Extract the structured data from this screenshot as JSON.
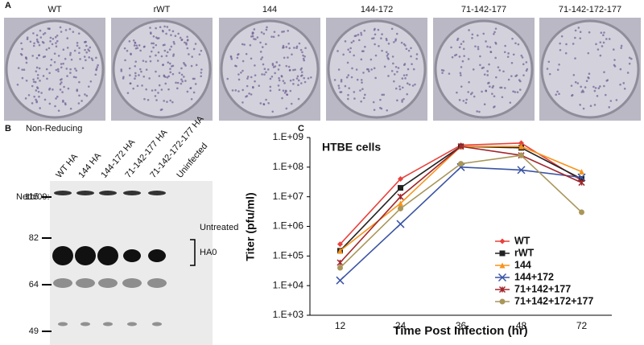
{
  "panel_a": {
    "label": "A",
    "plates": [
      "WT",
      "rWT",
      "144",
      "144-172",
      "71-142-177",
      "71-142-172-177"
    ]
  },
  "panel_b": {
    "label": "B",
    "condition": "Non-Reducing",
    "strain": "Neth/09:",
    "lanes": [
      "WT HA",
      "144 HA",
      "144-172 HA",
      "71-142-177 HA",
      "71-142-172-177 HA",
      "Uninfected"
    ],
    "markers": [
      115,
      82,
      64,
      49
    ],
    "treatment": "Untreated",
    "band": "HA0"
  },
  "chart_data": {
    "type": "line",
    "panel_label": "C",
    "annotation": "HTBE cells",
    "x_label": "Time Post Infection (hr)",
    "y_label": "Titer (pfu/ml)",
    "categories": [
      "12",
      "24",
      "36",
      "48",
      "72"
    ],
    "log_scale": true,
    "ylim": [
      1000,
      1000000000
    ],
    "yticks": [
      {
        "value": 1000,
        "label": "1.E+03"
      },
      {
        "value": 10000,
        "label": "1.E+04"
      },
      {
        "value": 100000,
        "label": "1.E+05"
      },
      {
        "value": 1000000,
        "label": "1.E+06"
      },
      {
        "value": 10000000,
        "label": "1.E+07"
      },
      {
        "value": 100000000,
        "label": "1.E+08"
      },
      {
        "value": 1000000000,
        "label": "1.E+09"
      }
    ],
    "legend": "lower right",
    "series": [
      {
        "name": "WT",
        "color": "#e8413c",
        "marker": "diamond",
        "values": [
          250000,
          40000000,
          550000000,
          650000000,
          35000000
        ]
      },
      {
        "name": "rWT",
        "color": "#222222",
        "marker": "square",
        "values": [
          150000,
          20000000,
          500000000,
          450000000,
          40000000
        ]
      },
      {
        "name": "144",
        "color": "#f7941d",
        "marker": "triangle",
        "values": [
          150000,
          6000000,
          500000000,
          500000000,
          70000000
        ]
      },
      {
        "name": "144+172",
        "color": "#3953a4",
        "marker": "x",
        "values": [
          15000,
          1200000,
          100000000,
          80000000,
          45000000
        ]
      },
      {
        "name": "71+142+177",
        "color": "#a0262b",
        "marker": "star",
        "values": [
          60000,
          10000000,
          500000000,
          250000000,
          30000000
        ]
      },
      {
        "name": "71+142+172+177",
        "color": "#a8965a",
        "marker": "circle",
        "values": [
          40000,
          4000000,
          130000000,
          250000000,
          3000000
        ]
      }
    ]
  }
}
